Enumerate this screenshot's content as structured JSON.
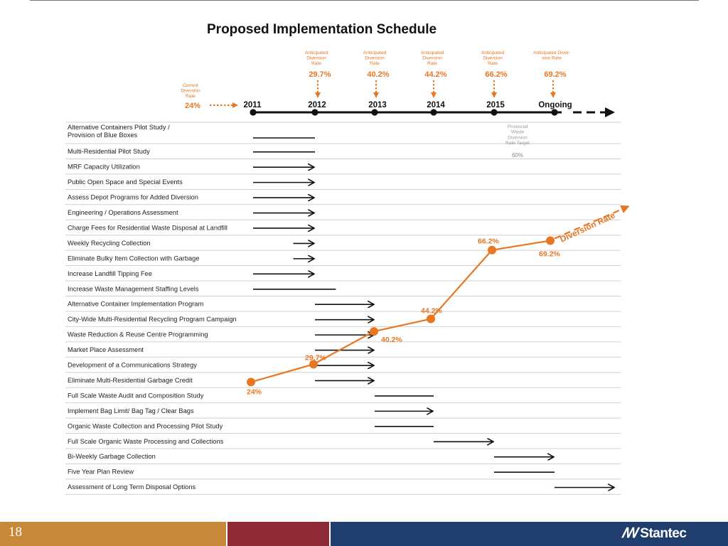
{
  "slide": {
    "title": "Proposed Implementation Schedule",
    "page_number": "18",
    "logo_mark": "ꟿ",
    "logo_text": "Stantec",
    "colors": {
      "accent": "#e87722",
      "footer_gold": "#c8883a",
      "footer_red": "#8e2a35",
      "footer_navy": "#1f3e6e",
      "text": "#222222"
    }
  },
  "timeline": {
    "years": [
      "2011",
      "2012",
      "2013",
      "2014",
      "2015",
      "Ongoing"
    ],
    "current": {
      "caption": [
        "Current",
        "Diversion",
        "Rate"
      ],
      "rate": "24%"
    },
    "anticipated": [
      {
        "caption": [
          "Anticipated",
          "Diversion",
          "Rate"
        ],
        "rate": "29.7%"
      },
      {
        "caption": [
          "Anticipated",
          "Diversion",
          "Rate"
        ],
        "rate": "40.2%"
      },
      {
        "caption": [
          "Anticipated",
          "Diversion",
          "Rate"
        ],
        "rate": "44.2%"
      },
      {
        "caption": [
          "Anticipated",
          "Diversion",
          "Rate"
        ],
        "rate": "66.2%"
      },
      {
        "caption": [
          "Anticipated Diver-",
          "sion Rate"
        ],
        "rate": "69.2%"
      }
    ],
    "provincial_target": {
      "caption": [
        "Provincial",
        "Waste",
        "Diversion",
        "Rate Target"
      ],
      "value": "60%"
    }
  },
  "chart_data": {
    "type": "line",
    "title": "Proposed Implementation Schedule",
    "x": [
      "2011",
      "2012",
      "2013",
      "2014",
      "2015",
      "Ongoing"
    ],
    "series": [
      {
        "name": "Diversion Rate",
        "values": [
          24,
          29.7,
          40.2,
          44.2,
          66.2,
          69.2
        ],
        "labels": [
          "24%",
          "29.7%",
          "40.2%",
          "44.2%",
          "66.2%",
          "69.2%"
        ]
      }
    ],
    "tasks": [
      {
        "label": [
          "Alternative Containers Pilot Study /",
          "Provision of Blue Boxes"
        ],
        "start": 0,
        "end": 1,
        "arrow": false
      },
      {
        "label": [
          "Multi-Residential Pilot Study"
        ],
        "start": 0,
        "end": 1,
        "arrow": false
      },
      {
        "label": [
          "MRF Capacity Utilization"
        ],
        "start": 0,
        "end": 1,
        "arrow": true
      },
      {
        "label": [
          "Public Open Space and Special Events"
        ],
        "start": 0,
        "end": 1,
        "arrow": true
      },
      {
        "label": [
          "Assess Depot Programs for Added Diversion"
        ],
        "start": 0,
        "end": 1,
        "arrow": true
      },
      {
        "label": [
          "Engineering / Operations Assessment"
        ],
        "start": 0,
        "end": 1,
        "arrow": true
      },
      {
        "label": [
          "Charge Fees for Residential Waste Disposal at Landfill"
        ],
        "start": 0,
        "end": 1,
        "arrow": true
      },
      {
        "label": [
          "Weekly Recycling Collection"
        ],
        "start": 0.65,
        "end": 1,
        "arrow": true
      },
      {
        "label": [
          "Eliminate Bulky Item Collection with Garbage"
        ],
        "start": 0.65,
        "end": 1,
        "arrow": true
      },
      {
        "label": [
          "Increase Landfill Tipping Fee"
        ],
        "start": 0,
        "end": 1,
        "arrow": true
      },
      {
        "label": [
          "Increase Waste Management Staffing Levels"
        ],
        "start": 0,
        "end": 1.35,
        "arrow": false
      },
      {
        "label": [
          "Alternative Container Implementation Program"
        ],
        "start": 1,
        "end": 2,
        "arrow": true
      },
      {
        "label": [
          "City-Wide Multi-Residential Recycling Program Campaign"
        ],
        "start": 1,
        "end": 2,
        "arrow": true
      },
      {
        "label": [
          "Waste Reduction & Reuse Centre Programming"
        ],
        "start": 1,
        "end": 2,
        "arrow": true
      },
      {
        "label": [
          "Market Place Assessment"
        ],
        "start": 1,
        "end": 2,
        "arrow": true
      },
      {
        "label": [
          "Development of a Communications Strategy"
        ],
        "start": 1,
        "end": 2,
        "arrow": true
      },
      {
        "label": [
          "Eliminate Multi-Residential Garbage Credit"
        ],
        "start": 1,
        "end": 2,
        "arrow": true
      },
      {
        "label": [
          "Full Scale Waste Audit and Composition Study"
        ],
        "start": 2,
        "end": 3,
        "arrow": false
      },
      {
        "label": [
          "Implement Bag Limit/ Bag Tag / Clear Bags"
        ],
        "start": 2,
        "end": 3,
        "arrow": true
      },
      {
        "label": [
          "Organic Waste Collection and Processing Pilot Study"
        ],
        "start": 2,
        "end": 3,
        "arrow": false
      },
      {
        "label": [
          "Full Scale Organic Waste Processing and Collections"
        ],
        "start": 3,
        "end": 4,
        "arrow": true
      },
      {
        "label": [
          "Bi-Weekly Garbage Collection"
        ],
        "start": 4,
        "end": 5,
        "arrow": true
      },
      {
        "label": [
          "Five Year Plan Review"
        ],
        "start": 4,
        "end": 5,
        "arrow": false
      },
      {
        "label": [
          "Assessment of Long Term Disposal Options"
        ],
        "start": 5,
        "end": 6,
        "arrow": true
      }
    ],
    "trend_label": "Diversion Rate"
  }
}
